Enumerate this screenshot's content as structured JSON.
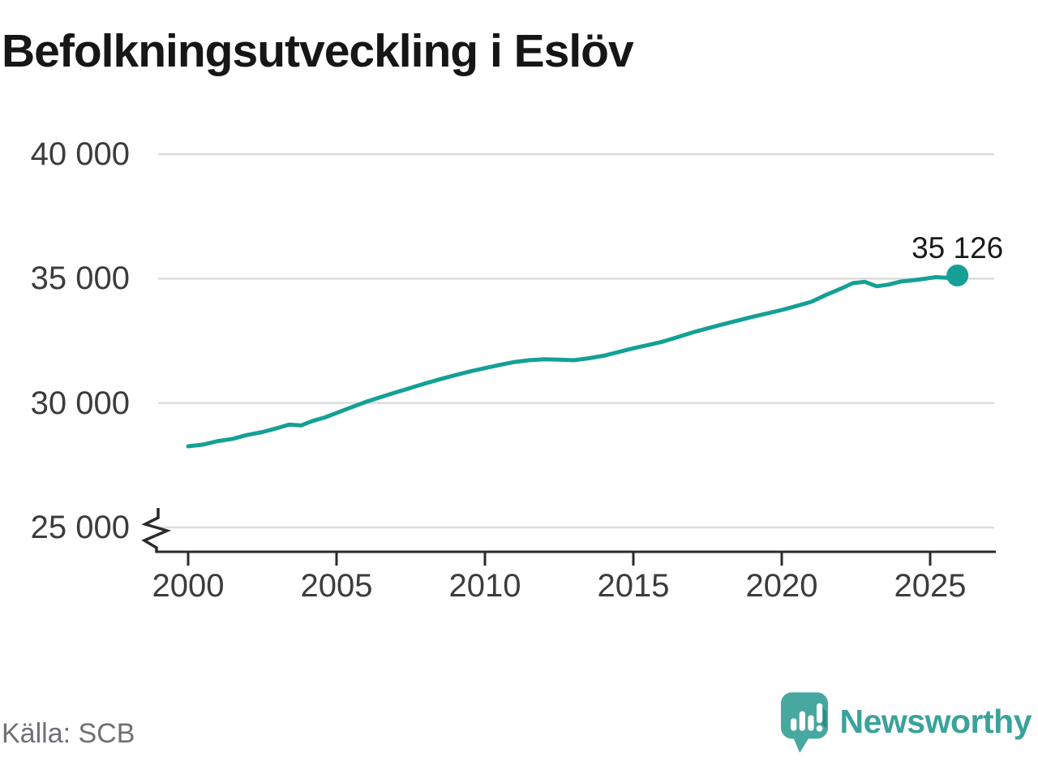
{
  "title": "Befolkningsutveckling i Eslöv",
  "source": "Källa: SCB",
  "logo": {
    "text": "Newsworthy",
    "icon": "newsworthy-speech-bubble-bar-chart-icon"
  },
  "colors": {
    "line": "#14a096",
    "grid": "#dcdcdc",
    "axis": "#2b2b2b",
    "tick_text": "#3c3c3c",
    "title_text": "#161616",
    "source_text": "#6f6f76",
    "logo_teal": "#47a8a0",
    "logo_text": "#3aa29b",
    "logo_dark": "#2e8b85",
    "value_label_text": "#1a1a1a"
  },
  "chart_data": {
    "type": "line",
    "title": "Befolkningsutveckling i Eslöv",
    "xlabel": "",
    "ylabel": "",
    "grid": "horizontal",
    "legend": "none",
    "axis_break_at_bottom": true,
    "xlim": [
      1998.9,
      2027.2
    ],
    "ylim": [
      25000,
      40000
    ],
    "x_ticks": [
      2000,
      2005,
      2010,
      2015,
      2020,
      2025
    ],
    "x_tick_labels": [
      "2000",
      "2005",
      "2010",
      "2015",
      "2020",
      "2025"
    ],
    "y_ticks": [
      25000,
      30000,
      35000,
      40000
    ],
    "y_tick_labels": [
      "25 000",
      "30 000",
      "35 000",
      "40 000"
    ],
    "series": [
      {
        "name": "Befolkning i Eslöv",
        "x": [
          2000,
          2000.5,
          2001,
          2001.5,
          2002,
          2002.5,
          2003,
          2003.4,
          2003.8,
          2004.2,
          2004.6,
          2005,
          2005.5,
          2006,
          2006.5,
          2007,
          2007.5,
          2008,
          2008.5,
          2009,
          2009.5,
          2010,
          2010.5,
          2011,
          2011.5,
          2012,
          2012.5,
          2013,
          2013.5,
          2014,
          2014.5,
          2015,
          2015.5,
          2016,
          2016.5,
          2017,
          2017.5,
          2018,
          2018.5,
          2019,
          2019.5,
          2020,
          2020.5,
          2021,
          2021.5,
          2022,
          2022.4,
          2022.8,
          2023.2,
          2023.6,
          2024,
          2024.4,
          2024.8,
          2025.2,
          2025.6,
          2025.92
        ],
        "values": [
          28260,
          28330,
          28470,
          28560,
          28720,
          28830,
          28990,
          29130,
          29100,
          29280,
          29420,
          29600,
          29830,
          30050,
          30240,
          30430,
          30610,
          30790,
          30960,
          31120,
          31270,
          31400,
          31530,
          31650,
          31720,
          31760,
          31740,
          31720,
          31800,
          31900,
          32050,
          32200,
          32330,
          32470,
          32650,
          32840,
          33000,
          33160,
          33310,
          33460,
          33600,
          33740,
          33900,
          34070,
          34350,
          34600,
          34820,
          34870,
          34690,
          34760,
          34880,
          34930,
          34990,
          35060,
          35030,
          35126
        ]
      }
    ],
    "end_label": {
      "x": 2025.92,
      "value": 35126,
      "text": "35 126"
    }
  }
}
